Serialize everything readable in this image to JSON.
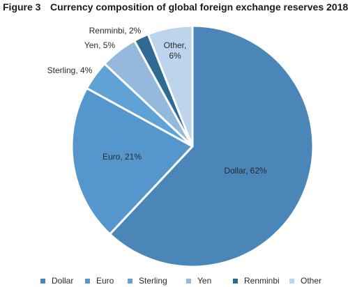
{
  "figure": {
    "number": "Figure 3",
    "title": "Currency composition of global foreign exchange reserves 2018"
  },
  "chart_data": {
    "type": "pie",
    "title": "Currency composition of global foreign exchange reserves 2018",
    "start_angle_deg": 0,
    "direction": "clockwise",
    "slices": [
      {
        "name": "Dollar",
        "value": 62,
        "label": "Dollar, 62%",
        "color": "#4a86b8"
      },
      {
        "name": "Euro",
        "value": 21,
        "label": "Euro, 21%",
        "color": "#5596cc"
      },
      {
        "name": "Sterling",
        "value": 4,
        "label": "Sterling, 4%",
        "color": "#5fa3d6"
      },
      {
        "name": "Yen",
        "value": 5,
        "label": "Yen, 5%",
        "color": "#95b9dc"
      },
      {
        "name": "Renminbi",
        "value": 2,
        "label": "Renminbi, 2%",
        "color": "#2e6a92"
      },
      {
        "name": "Other",
        "value": 6,
        "label": "Other,\n6%",
        "color": "#bcd4ec"
      }
    ],
    "legend": {
      "placement": "bottom",
      "entries": [
        "Dollar",
        "Euro",
        "Sterling",
        "Yen",
        "Renminbi",
        "Other"
      ]
    }
  }
}
